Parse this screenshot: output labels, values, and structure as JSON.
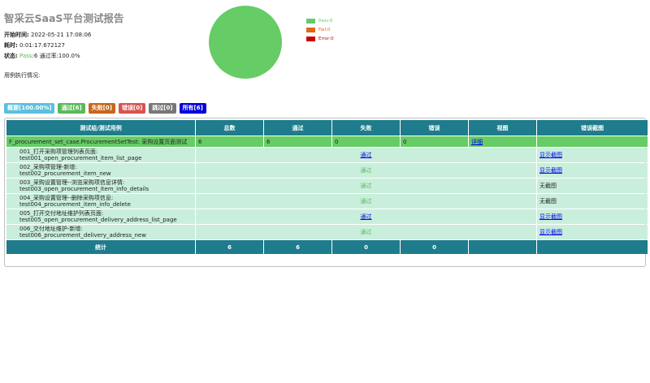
{
  "report": {
    "title": "智采云SaaS平台测试报告",
    "start_label": "开始时间:",
    "start_value": " 2022-05-21 17:08:06",
    "duration_label": "耗时:",
    "duration_value": " 0:01:17.672127",
    "status_label": "状态:",
    "status_pass": " Pass",
    "status_rest": ":6 通过率:100.0%",
    "case_overview": "用例执行情况:"
  },
  "chart_data": {
    "type": "pie",
    "categories": [
      "Pass",
      "Fail",
      "Error"
    ],
    "values": [
      6,
      0,
      0
    ],
    "legend": [
      "Pass:6",
      "Fail:0",
      "Error:0"
    ],
    "colors": [
      "#66cc66",
      "#e0661a",
      "#cc0000"
    ],
    "legend_position": "right"
  },
  "filters": [
    {
      "label": "概要[100.00%]",
      "color": "#5bc0de"
    },
    {
      "label": "通过[6]",
      "color": "#5cb85c"
    },
    {
      "label": "失败[0]",
      "color": "#c9661c"
    },
    {
      "label": "错误[0]",
      "color": "#d9534f"
    },
    {
      "label": "跳过[0]",
      "color": "#777777"
    },
    {
      "label": "所有[6]",
      "color": "#0000dd"
    }
  ],
  "table": {
    "headers": [
      "测试组/测试用例",
      "总数",
      "通过",
      "失败",
      "错误",
      "视图",
      "错误截图"
    ],
    "class_row": {
      "name": "F_procurement_set_case.ProcurementSetTest: 采购设置页面测试",
      "total": "6",
      "pass": "6",
      "fail": "0",
      "error": "0",
      "view": "详细",
      "screenshot": ""
    },
    "cases": [
      {
        "line1": "001_打开采购项管理列表页面:",
        "line2": "test001_open_procurement_item_list_page",
        "result": "通过",
        "result_link": true,
        "shot": "显示截图",
        "shot_link": true
      },
      {
        "line1": "002_采购项管理-新增:",
        "line2": "test002_procurement_item_new",
        "result": "通过",
        "result_link": false,
        "shot": "显示截图",
        "shot_link": true
      },
      {
        "line1": "003_采购设置管理--浏览采购项信息详情:",
        "line2": "test003_open_procurement_item_info_details",
        "result": "通过",
        "result_link": false,
        "shot": "无截图",
        "shot_link": false
      },
      {
        "line1": "004_采购设置管理--删除采购项信息:",
        "line2": "test004_procurement_item_info_delete",
        "result": "通过",
        "result_link": false,
        "shot": "无截图",
        "shot_link": false
      },
      {
        "line1": "005_打开交付地址维护列表页面:",
        "line2": "test005_open_procurement_delivery_address_list_page",
        "result": "通过",
        "result_link": true,
        "shot": "显示截图",
        "shot_link": true
      },
      {
        "line1": "006_交付地址维护-新增:",
        "line2": "test006_procurement_delivery_address_new",
        "result": "通过",
        "result_link": false,
        "shot": "显示截图",
        "shot_link": true
      }
    ],
    "total_row": {
      "label": "统计",
      "total": "6",
      "pass": "6",
      "fail": "0",
      "error": "0",
      "view": "",
      "screenshot": ""
    }
  }
}
